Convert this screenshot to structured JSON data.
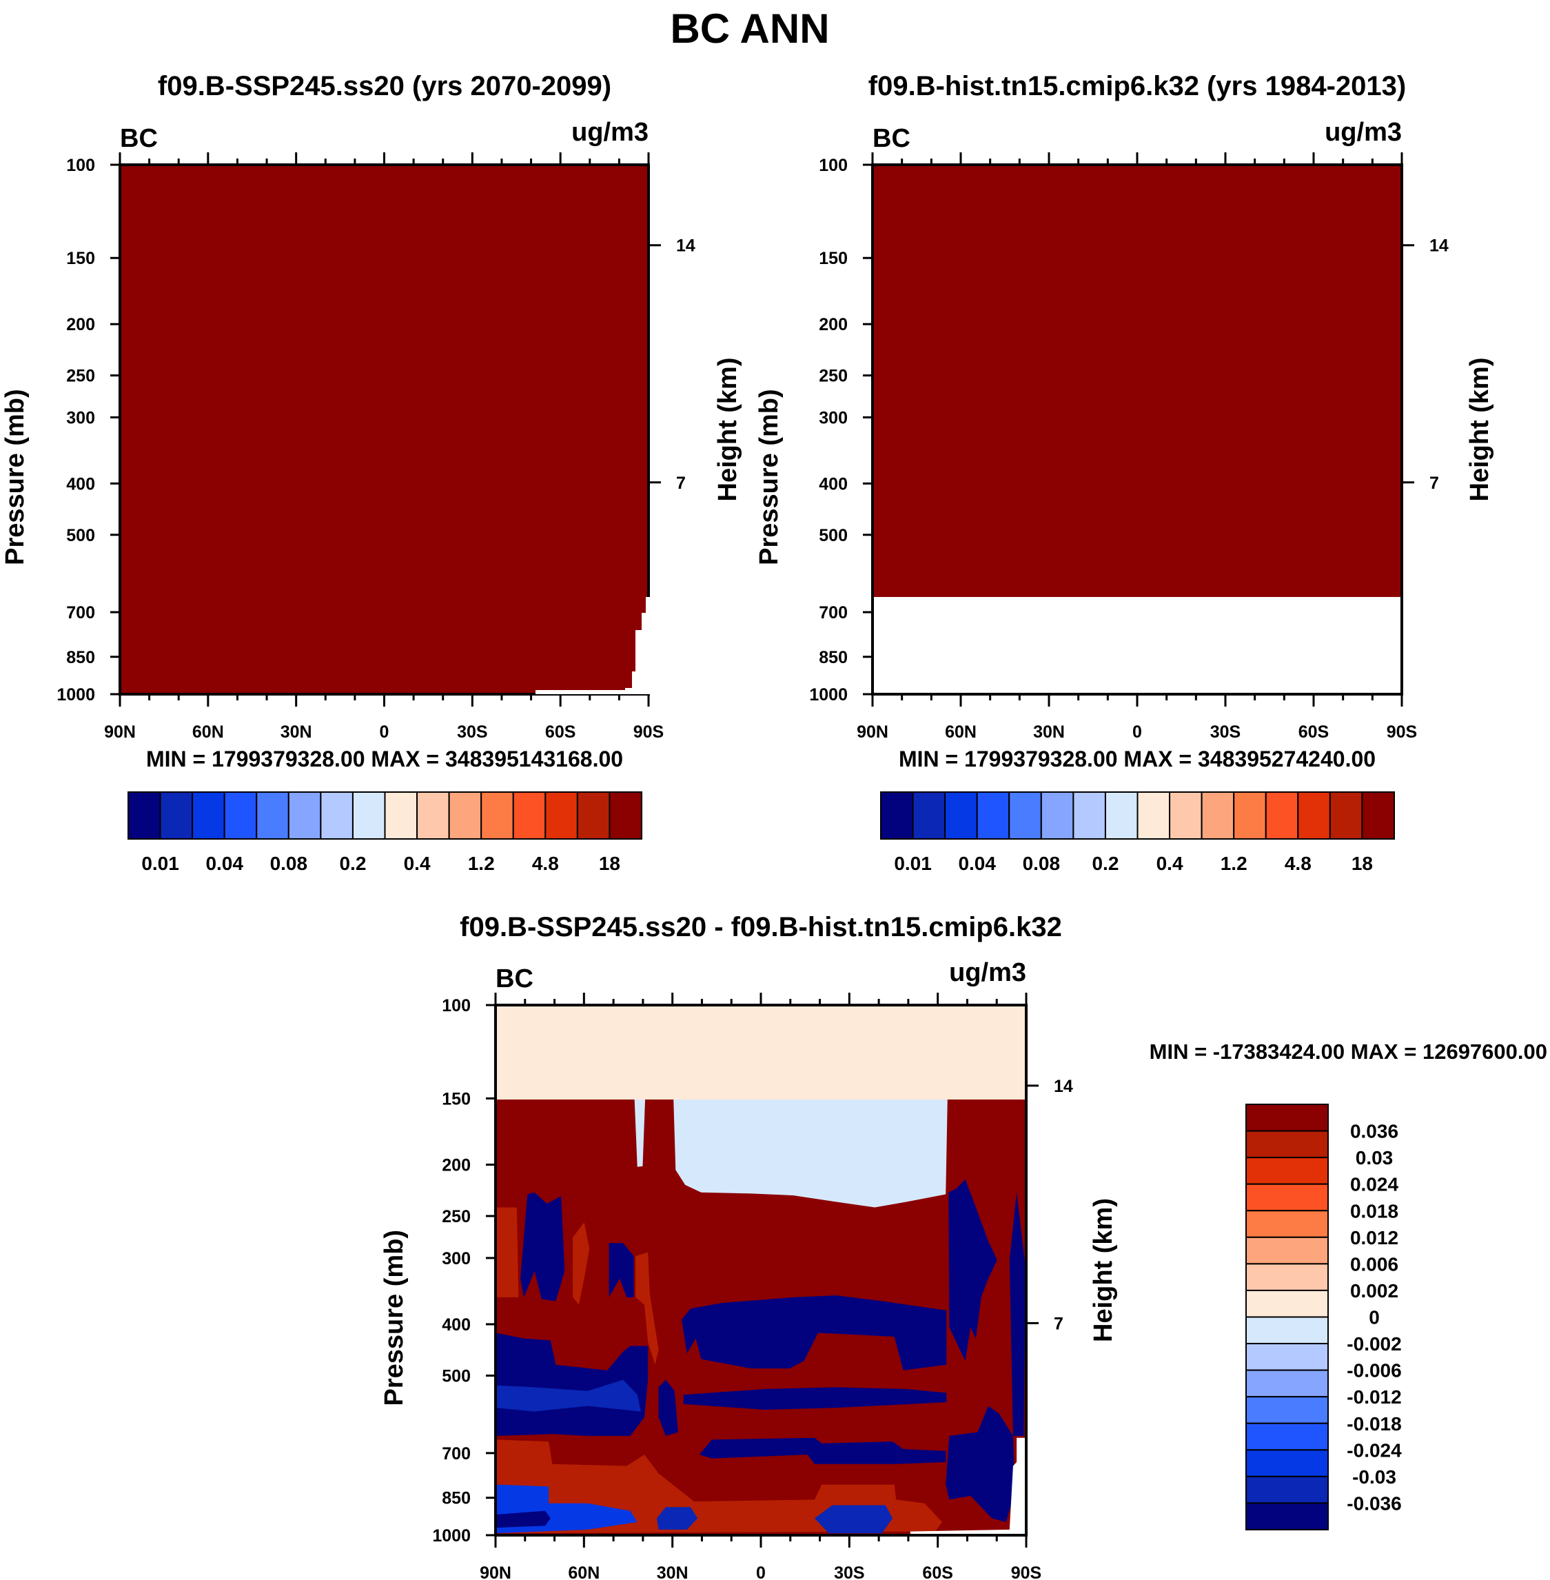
{
  "title": "BC ANN",
  "colors": [
    "#02027e",
    "#0a27b5",
    "#0539e6",
    "#1f55ff",
    "#4a7cff",
    "#85a5ff",
    "#b3c9ff",
    "#d6e8fc",
    "#feead8",
    "#fdc8ab",
    "#fda67d",
    "#fd7c45",
    "#fd5224",
    "#e23107",
    "#b61f03",
    "#8b0000"
  ],
  "chart_data": [
    {
      "type": "heatmap",
      "title": "f09.B-SSP245.ss20 (yrs 2070-2099)",
      "variable": "BC",
      "units": "ug/m3",
      "ylabel": "Pressure (mb)",
      "ylabel_right": "Height (km)",
      "x_ticks": [
        "90N",
        "60N",
        "30N",
        "0",
        "30S",
        "60S",
        "90S"
      ],
      "y_ticks": [
        100,
        150,
        200,
        250,
        300,
        400,
        500,
        700,
        850,
        1000
      ],
      "y_right_ticks": [
        "14",
        "7"
      ],
      "ylim": [
        1000,
        100
      ],
      "stats": "MIN = 1799379328.00   MAX = 348395143168.00",
      "colorbar_labels": [
        "0.01",
        "0.04",
        "0.08",
        "0.2",
        "0.4",
        "1.2",
        "4.8",
        "18"
      ],
      "field": "uniformly above 18 (darkest red); missing near 90S below ~650 mb"
    },
    {
      "type": "heatmap",
      "title": "f09.B-hist.tn15.cmip6.k32 (yrs 1984-2013)",
      "variable": "BC",
      "units": "ug/m3",
      "ylabel": "Pressure (mb)",
      "ylabel_right": "Height (km)",
      "x_ticks": [
        "90N",
        "60N",
        "30N",
        "0",
        "30S",
        "60S",
        "90S"
      ],
      "y_ticks": [
        100,
        150,
        200,
        250,
        300,
        400,
        500,
        700,
        850,
        1000
      ],
      "y_right_ticks": [
        "14",
        "7"
      ],
      "ylim": [
        1000,
        100
      ],
      "stats": "MIN = 1799379328.00   MAX = 348395274240.00",
      "colorbar_labels": [
        "0.01",
        "0.04",
        "0.08",
        "0.2",
        "0.4",
        "1.2",
        "4.8",
        "18"
      ],
      "field": "uniformly above 18 (darkest red); missing near 90S below ~650 mb"
    },
    {
      "type": "heatmap",
      "title": "f09.B-SSP245.ss20 - f09.B-hist.tn15.cmip6.k32",
      "variable": "BC",
      "units": "ug/m3",
      "ylabel": "Pressure (mb)",
      "ylabel_right": "Height (km)",
      "x_ticks": [
        "90N",
        "60N",
        "30N",
        "0",
        "30S",
        "60S",
        "90S"
      ],
      "y_ticks": [
        100,
        150,
        200,
        250,
        300,
        400,
        500,
        700,
        850,
        1000
      ],
      "y_right_ticks": [
        "14",
        "7"
      ],
      "ylim": [
        1000,
        100
      ],
      "stats": "MIN = -17383424.00   MAX = 12697600.00",
      "colorbar_labels": [
        "0.036",
        "0.03",
        "0.024",
        "0.018",
        "0.012",
        "0.006",
        "0.002",
        "0",
        "-0.002",
        "-0.006",
        "-0.012",
        "-0.018",
        "-0.024",
        "-0.03",
        "-0.036"
      ]
    }
  ]
}
